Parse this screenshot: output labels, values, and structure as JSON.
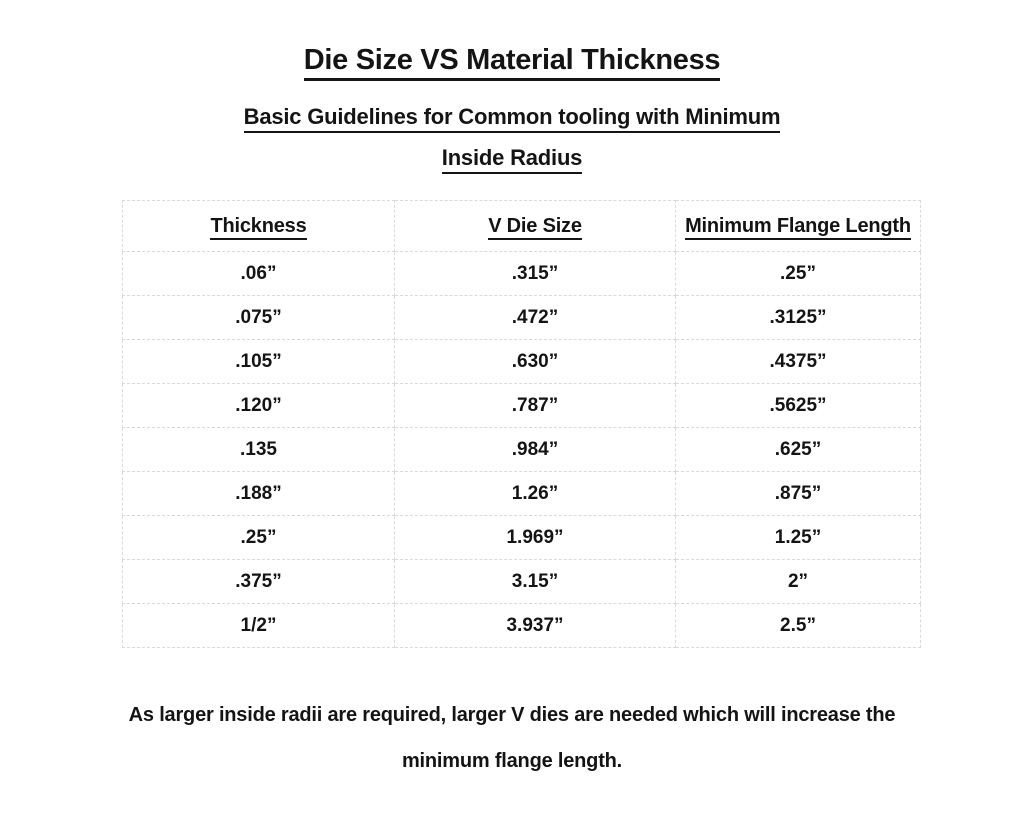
{
  "document": {
    "title": "Die Size VS Material Thickness",
    "subtitle_lines": [
      "Basic Guidelines for Common tooling with Minimum",
      "Inside Radius"
    ],
    "footnote_lines": [
      "As larger inside radii are required, larger V dies are needed which will increase the",
      "minimum flange length."
    ]
  },
  "table": {
    "headers": [
      "Thickness",
      "V Die Size",
      "Minimum Flange Length"
    ],
    "rows": [
      [
        ".06”",
        ".315”",
        ".25”"
      ],
      [
        ".075”",
        ".472”",
        ".3125”"
      ],
      [
        ".105”",
        ".630”",
        ".4375”"
      ],
      [
        ".120”",
        ".787”",
        ".5625”"
      ],
      [
        ".135",
        ".984”",
        ".625”"
      ],
      [
        ".188”",
        "1.26”",
        ".875”"
      ],
      [
        ".25”",
        "1.969”",
        "1.25”"
      ],
      [
        ".375”",
        "3.15”",
        "2”"
      ],
      [
        "1/2”",
        "3.937”",
        "2.5”"
      ]
    ]
  },
  "colors": {
    "text": "#141414",
    "table_border": "#d9d9d9",
    "background": "#ffffff"
  }
}
